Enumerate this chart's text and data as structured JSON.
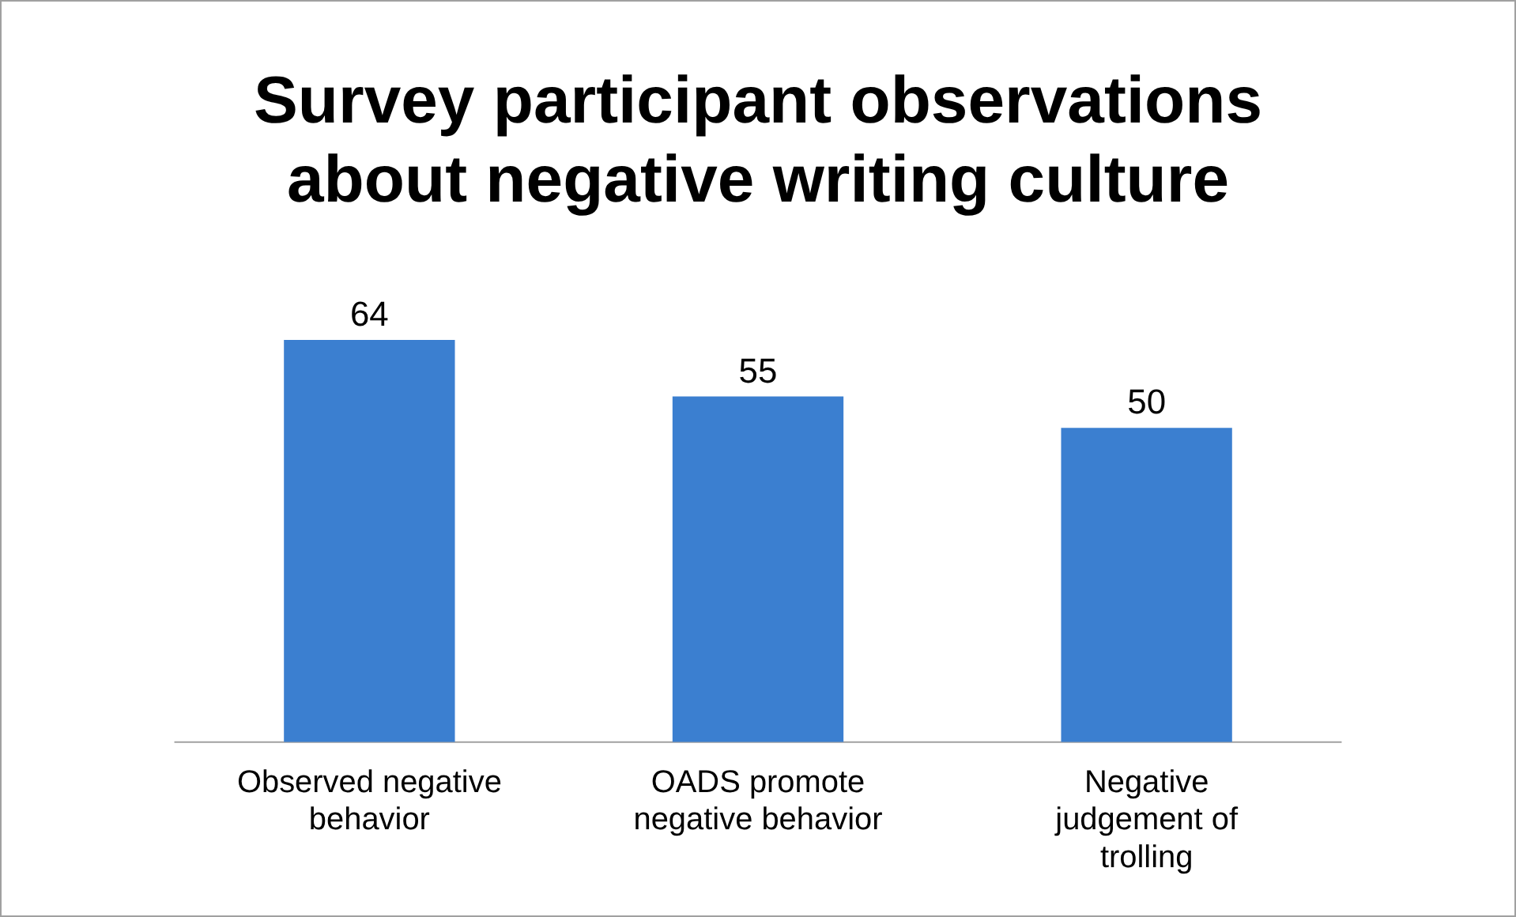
{
  "chart_data": {
    "type": "bar",
    "title": "Survey participant observations about negative writing culture",
    "categories": [
      "Observed negative behavior",
      "OADS promote negative behavior",
      "Negative judgement of trolling"
    ],
    "values": [
      64,
      55,
      50
    ],
    "color": "#3b7fd0",
    "data_labels": true,
    "grid": false,
    "legend": false
  }
}
